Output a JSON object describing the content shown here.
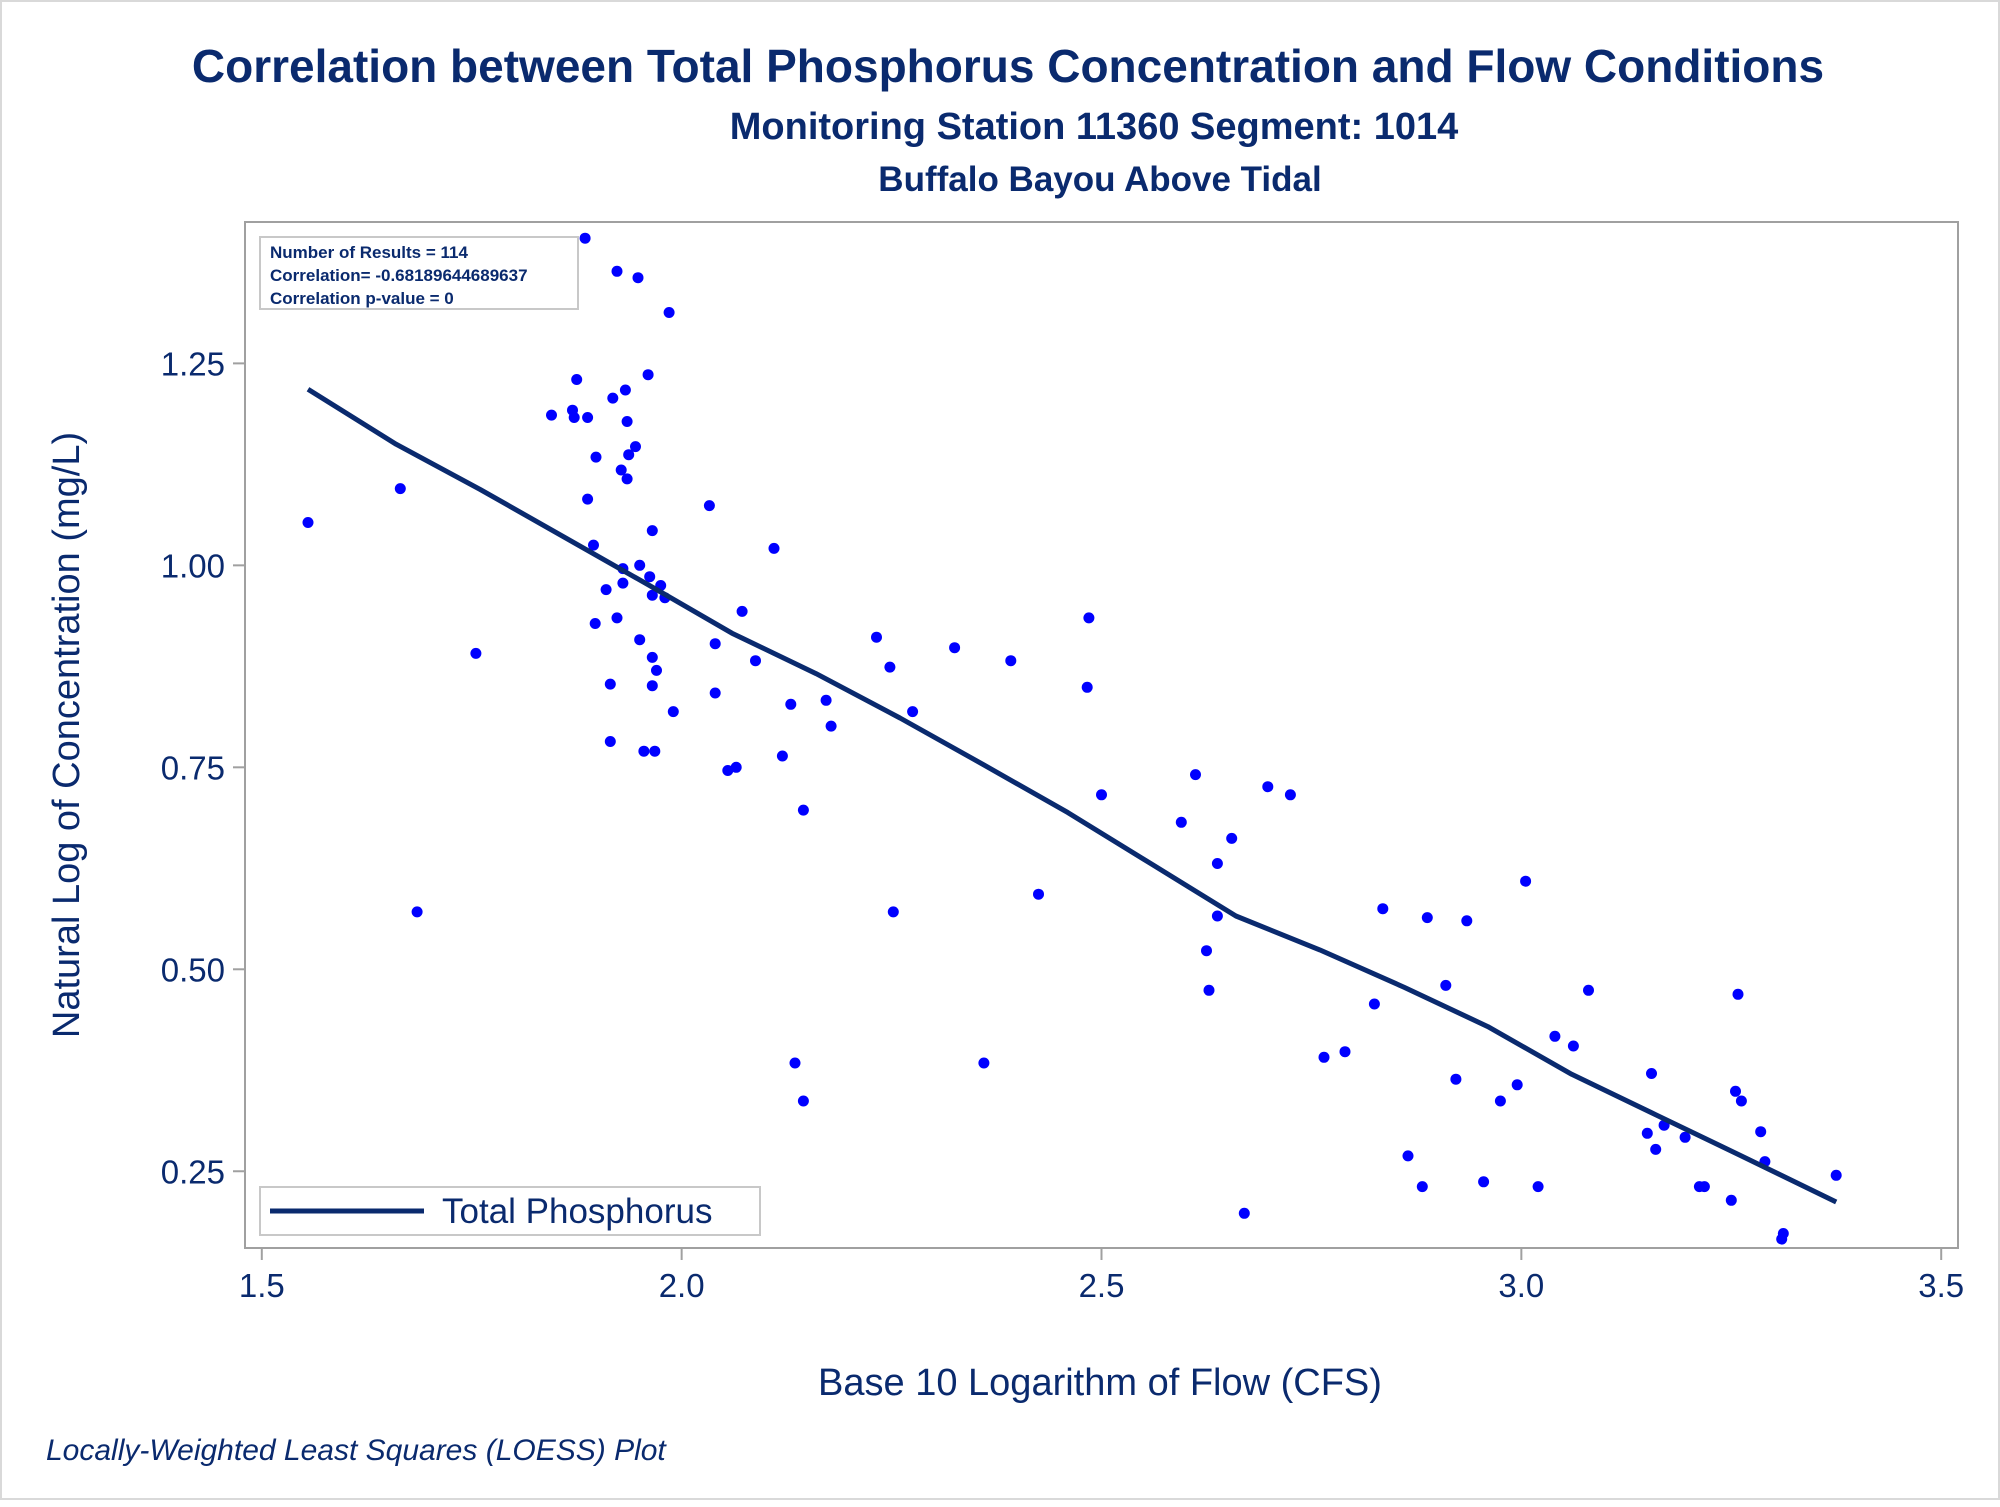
{
  "chart_data": {
    "type": "scatter",
    "title": "Correlation between Total Phosphorus Concentration and Flow Conditions",
    "subtitle": "Monitoring Station 11360 Segment: 1014",
    "subtitle2": "Buffalo Bayou Above Tidal",
    "xlabel": "Base 10 Logarithm of Flow (CFS)",
    "ylabel": "Natural Log of Concentration (mg/L)",
    "xlim": [
      1.48,
      3.52
    ],
    "ylim": [
      0.155,
      1.425
    ],
    "x_ticks": [
      1.5,
      2.0,
      2.5,
      3.0,
      3.5
    ],
    "x_tick_labels": [
      "1.5",
      "2.0",
      "2.5",
      "3.0",
      "3.5"
    ],
    "y_ticks": [
      0.25,
      0.5,
      0.75,
      1.0,
      1.25
    ],
    "y_tick_labels": [
      "0.25",
      "0.50",
      "0.75",
      "1.00",
      "1.25"
    ],
    "grid": false,
    "legend_position": "bottom-left",
    "inset_position": "top-left",
    "inset_lines": [
      "Number of Results = 114",
      "Correlation= -0.68189644689637",
      "Correlation p-value = 0"
    ],
    "footnote": "Locally-Weighted Least Squares (LOESS) Plot",
    "colors": {
      "points": "#0000ff",
      "line": "#0a2a6e",
      "text": "#0a2a6e",
      "frame": "#a0a0a0"
    },
    "points": [
      [
        1.555,
        1.053
      ],
      [
        1.665,
        1.095
      ],
      [
        1.685,
        0.571
      ],
      [
        1.755,
        0.891
      ],
      [
        1.845,
        1.186
      ],
      [
        1.87,
        1.192
      ],
      [
        1.872,
        1.183
      ],
      [
        1.875,
        1.23
      ],
      [
        1.885,
        1.405
      ],
      [
        1.888,
        1.183
      ],
      [
        1.888,
        1.082
      ],
      [
        1.895,
        1.025
      ],
      [
        1.897,
        0.928
      ],
      [
        1.898,
        1.134
      ],
      [
        1.91,
        0.97
      ],
      [
        1.915,
        0.853
      ],
      [
        1.915,
        0.782
      ],
      [
        1.918,
        1.207
      ],
      [
        1.923,
        1.364
      ],
      [
        1.923,
        0.935
      ],
      [
        1.928,
        1.118
      ],
      [
        1.93,
        0.996
      ],
      [
        1.93,
        0.978
      ],
      [
        1.933,
        1.217
      ],
      [
        1.935,
        1.178
      ],
      [
        1.935,
        1.107
      ],
      [
        1.937,
        1.137
      ],
      [
        1.945,
        1.147
      ],
      [
        1.948,
        1.356
      ],
      [
        1.95,
        1.0
      ],
      [
        1.95,
        0.908
      ],
      [
        1.955,
        0.77
      ],
      [
        1.96,
        1.236
      ],
      [
        1.962,
        0.986
      ],
      [
        1.965,
        1.043
      ],
      [
        1.965,
        0.963
      ],
      [
        1.965,
        0.886
      ],
      [
        1.965,
        0.851
      ],
      [
        1.968,
        0.77
      ],
      [
        1.97,
        0.87
      ],
      [
        1.975,
        0.975
      ],
      [
        1.98,
        0.96
      ],
      [
        1.985,
        1.313
      ],
      [
        1.99,
        0.819
      ],
      [
        2.033,
        1.074
      ],
      [
        2.04,
        0.903
      ],
      [
        2.04,
        0.842
      ],
      [
        2.055,
        0.746
      ],
      [
        2.065,
        0.75
      ],
      [
        2.072,
        0.943
      ],
      [
        2.088,
        0.882
      ],
      [
        2.11,
        1.021
      ],
      [
        2.12,
        0.764
      ],
      [
        2.13,
        0.828
      ],
      [
        2.135,
        0.384
      ],
      [
        2.145,
        0.697
      ],
      [
        2.145,
        0.337
      ],
      [
        2.172,
        0.833
      ],
      [
        2.178,
        0.801
      ],
      [
        2.232,
        0.911
      ],
      [
        2.248,
        0.874
      ],
      [
        2.252,
        0.571
      ],
      [
        2.275,
        0.819
      ],
      [
        2.325,
        0.898
      ],
      [
        2.36,
        0.384
      ],
      [
        2.392,
        0.882
      ],
      [
        2.425,
        0.593
      ],
      [
        2.483,
        0.849
      ],
      [
        2.485,
        0.935
      ],
      [
        2.5,
        0.716
      ],
      [
        2.595,
        0.682
      ],
      [
        2.612,
        0.741
      ],
      [
        2.625,
        0.523
      ],
      [
        2.628,
        0.474
      ],
      [
        2.638,
        0.631
      ],
      [
        2.638,
        0.566
      ],
      [
        2.655,
        0.662
      ],
      [
        2.67,
        0.198
      ],
      [
        2.698,
        0.726
      ],
      [
        2.725,
        0.716
      ],
      [
        2.765,
        0.391
      ],
      [
        2.79,
        0.398
      ],
      [
        2.825,
        0.457
      ],
      [
        2.835,
        0.575
      ],
      [
        2.865,
        0.269
      ],
      [
        2.882,
        0.231
      ],
      [
        2.888,
        0.564
      ],
      [
        2.91,
        0.48
      ],
      [
        2.922,
        0.364
      ],
      [
        2.935,
        0.56
      ],
      [
        2.955,
        0.237
      ],
      [
        2.975,
        0.337
      ],
      [
        2.995,
        0.357
      ],
      [
        3.005,
        0.609
      ],
      [
        3.02,
        0.231
      ],
      [
        3.04,
        0.417
      ],
      [
        3.062,
        0.405
      ],
      [
        3.08,
        0.474
      ],
      [
        3.15,
        0.297
      ],
      [
        3.155,
        0.371
      ],
      [
        3.16,
        0.277
      ],
      [
        3.17,
        0.307
      ],
      [
        3.195,
        0.292
      ],
      [
        3.212,
        0.231
      ],
      [
        3.218,
        0.231
      ],
      [
        3.25,
        0.214
      ],
      [
        3.255,
        0.349
      ],
      [
        3.258,
        0.469
      ],
      [
        3.262,
        0.337
      ],
      [
        3.285,
        0.299
      ],
      [
        3.29,
        0.262
      ],
      [
        3.31,
        0.166
      ],
      [
        3.312,
        0.173
      ],
      [
        3.375,
        0.245
      ]
    ],
    "series": [
      {
        "name": "Total Phosphorus",
        "type": "line",
        "x": [
          1.555,
          1.66,
          1.76,
          1.86,
          1.96,
          2.06,
          2.16,
          2.26,
          2.36,
          2.46,
          2.56,
          2.66,
          2.76,
          2.86,
          2.96,
          3.06,
          3.16,
          3.26,
          3.375
        ],
        "y": [
          1.218,
          1.15,
          1.094,
          1.035,
          0.976,
          0.916,
          0.866,
          0.811,
          0.753,
          0.694,
          0.63,
          0.566,
          0.524,
          0.478,
          0.429,
          0.37,
          0.32,
          0.27,
          0.212
        ]
      }
    ]
  }
}
